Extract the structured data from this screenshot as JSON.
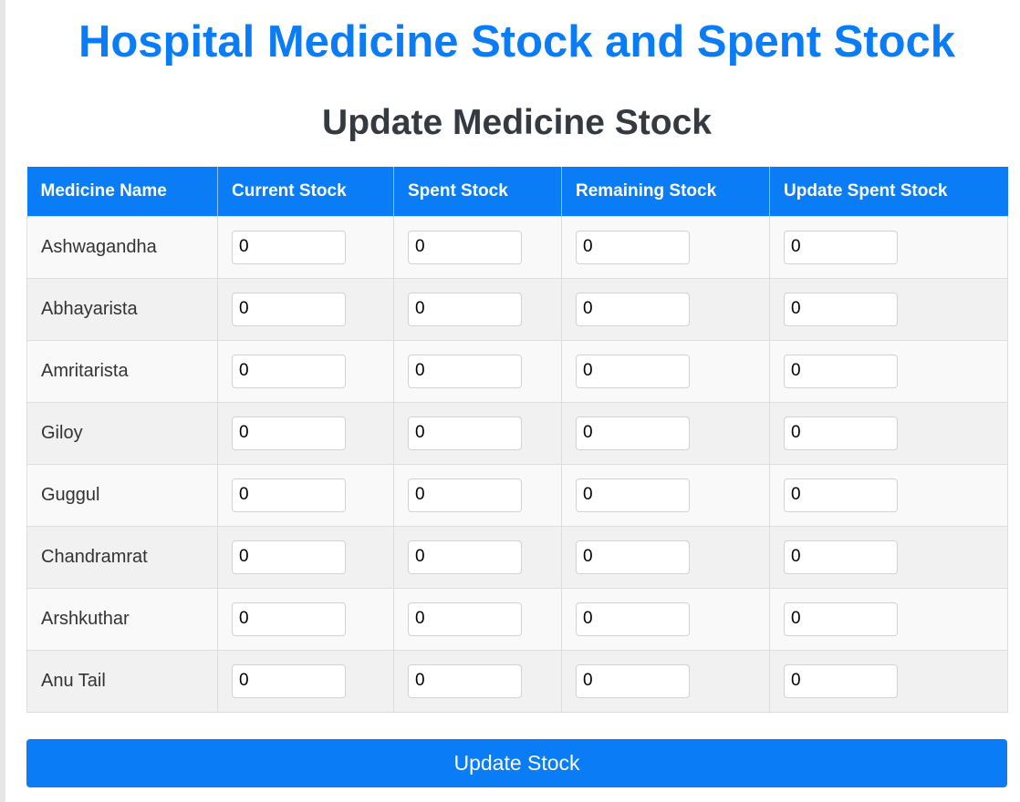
{
  "page": {
    "title": "Hospital Medicine Stock and Spent Stock",
    "subtitle": "Update Medicine Stock"
  },
  "table": {
    "headers": [
      "Medicine Name",
      "Current Stock",
      "Spent Stock",
      "Remaining Stock",
      "Update Spent Stock"
    ],
    "rows": [
      {
        "name": "Ashwagandha",
        "current": "0",
        "spent": "0",
        "remaining": "0",
        "update_spent": "0"
      },
      {
        "name": "Abhayarista",
        "current": "0",
        "spent": "0",
        "remaining": "0",
        "update_spent": "0"
      },
      {
        "name": "Amritarista",
        "current": "0",
        "spent": "0",
        "remaining": "0",
        "update_spent": "0"
      },
      {
        "name": "Giloy",
        "current": "0",
        "spent": "0",
        "remaining": "0",
        "update_spent": "0"
      },
      {
        "name": "Guggul",
        "current": "0",
        "spent": "0",
        "remaining": "0",
        "update_spent": "0"
      },
      {
        "name": "Chandramrat",
        "current": "0",
        "spent": "0",
        "remaining": "0",
        "update_spent": "0"
      },
      {
        "name": "Arshkuthar",
        "current": "0",
        "spent": "0",
        "remaining": "0",
        "update_spent": "0"
      },
      {
        "name": "Anu Tail",
        "current": "0",
        "spent": "0",
        "remaining": "0",
        "update_spent": "0"
      }
    ]
  },
  "actions": {
    "update_label": "Update Stock"
  },
  "colors": {
    "primary": "#0a7cf5",
    "heading_dark": "#343a40"
  }
}
